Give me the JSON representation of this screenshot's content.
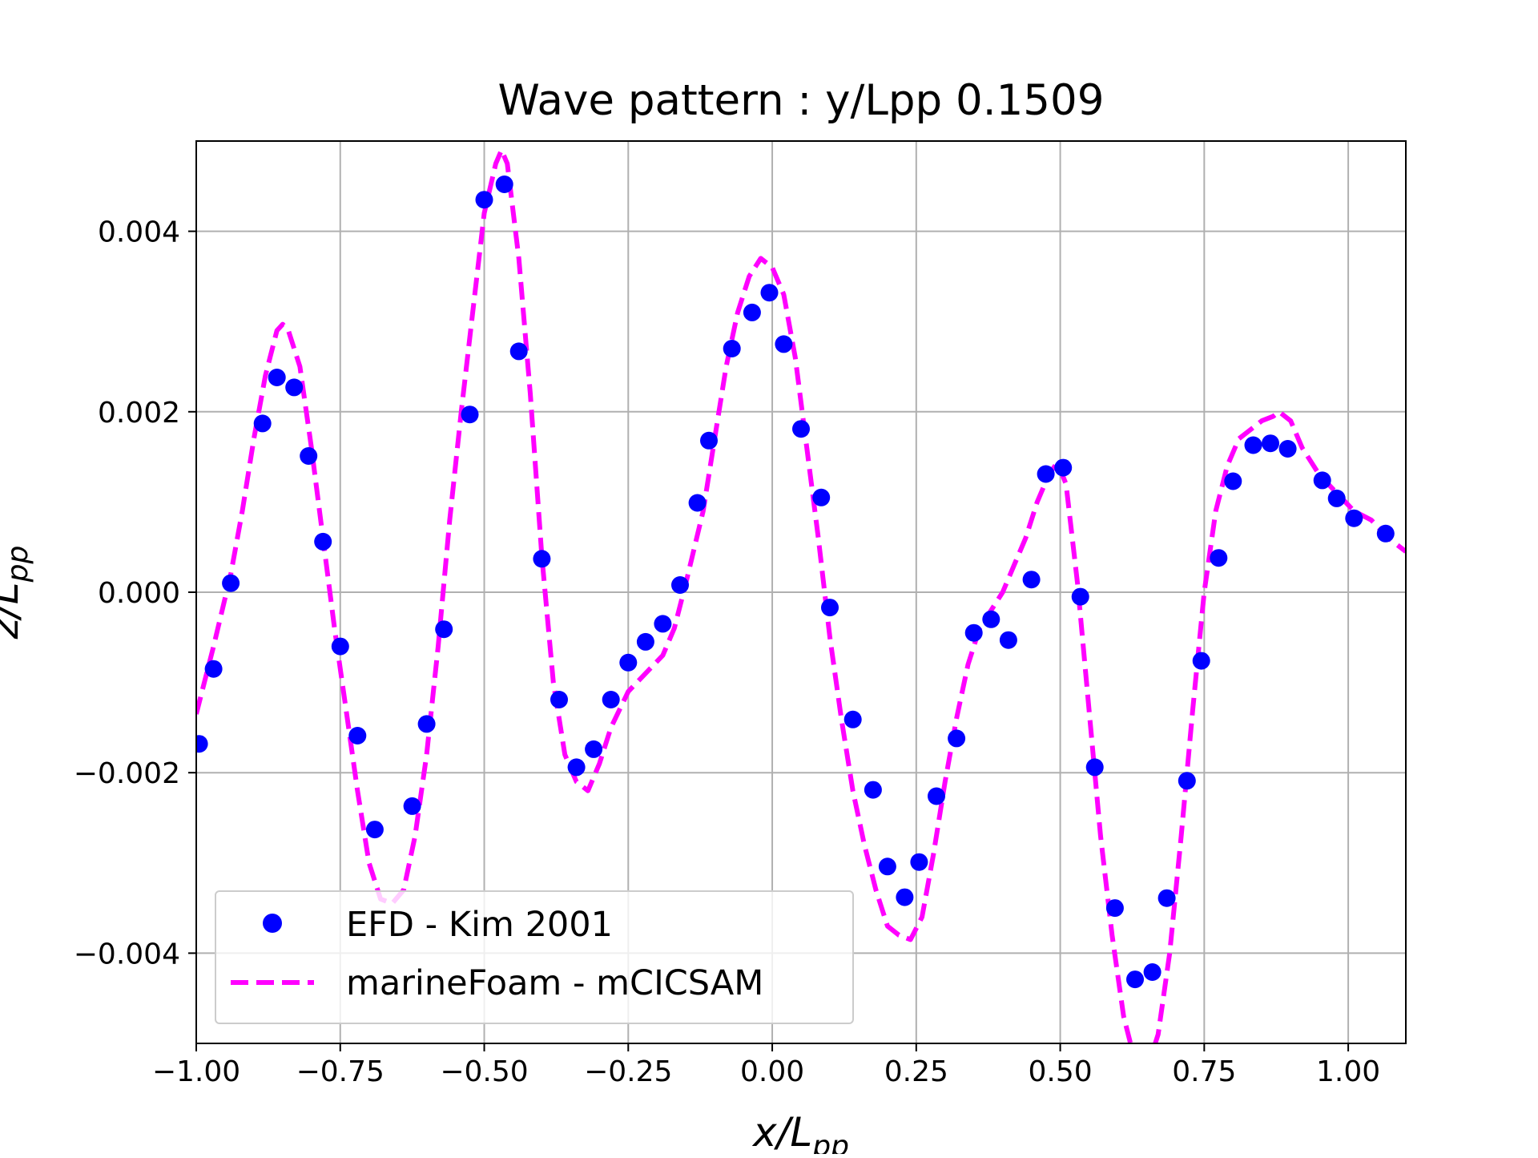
{
  "chart_data": {
    "type": "line",
    "title": "Wave pattern : y/Lpp 0.1509",
    "xlabel": {
      "main": "x/L",
      "sub": "pp"
    },
    "ylabel": {
      "main": "z/L",
      "sub": "pp"
    },
    "xlim": [
      -1.0,
      1.1
    ],
    "ylim": [
      -0.005,
      0.005
    ],
    "xticks": [
      {
        "value": -1.0,
        "label": "−1.00"
      },
      {
        "value": -0.75,
        "label": "−0.75"
      },
      {
        "value": -0.5,
        "label": "−0.50"
      },
      {
        "value": -0.25,
        "label": "−0.25"
      },
      {
        "value": 0.0,
        "label": "0.00"
      },
      {
        "value": 0.25,
        "label": "0.25"
      },
      {
        "value": 0.5,
        "label": "0.50"
      },
      {
        "value": 0.75,
        "label": "0.75"
      },
      {
        "value": 1.0,
        "label": "1.00"
      }
    ],
    "yticks": [
      {
        "value": -0.004,
        "label": "−0.004"
      },
      {
        "value": -0.002,
        "label": "−0.002"
      },
      {
        "value": 0.0,
        "label": "0.000"
      },
      {
        "value": 0.002,
        "label": "0.002"
      },
      {
        "value": 0.004,
        "label": "0.004"
      }
    ],
    "grid": true,
    "legend_position": "lower-left",
    "series": [
      {
        "name": "EFD - Kim 2001",
        "style": "markers",
        "color": "#0000ff",
        "points": [
          [
            -0.995,
            -0.00168
          ],
          [
            -0.97,
            -0.00085
          ],
          [
            -0.94,
            0.0001
          ],
          [
            -0.885,
            0.00187
          ],
          [
            -0.86,
            0.00238
          ],
          [
            -0.83,
            0.00227
          ],
          [
            -0.805,
            0.00151
          ],
          [
            -0.78,
            0.00056
          ],
          [
            -0.75,
            -0.0006
          ],
          [
            -0.72,
            -0.00159
          ],
          [
            -0.69,
            -0.00263
          ],
          [
            -0.625,
            -0.00237
          ],
          [
            -0.6,
            -0.00146
          ],
          [
            -0.57,
            -0.00041
          ],
          [
            -0.525,
            0.00197
          ],
          [
            -0.5,
            0.00435
          ],
          [
            -0.465,
            0.00452
          ],
          [
            -0.44,
            0.00267
          ],
          [
            -0.4,
            0.00037
          ],
          [
            -0.37,
            -0.00119
          ],
          [
            -0.34,
            -0.00194
          ],
          [
            -0.31,
            -0.00174
          ],
          [
            -0.28,
            -0.00119
          ],
          [
            -0.25,
            -0.00078
          ],
          [
            -0.22,
            -0.00055
          ],
          [
            -0.19,
            -0.00035
          ],
          [
            -0.16,
            8e-05
          ],
          [
            -0.13,
            0.00099
          ],
          [
            -0.11,
            0.00168
          ],
          [
            -0.07,
            0.0027
          ],
          [
            -0.035,
            0.0031
          ],
          [
            -0.005,
            0.00332
          ],
          [
            0.02,
            0.00275
          ],
          [
            0.05,
            0.00181
          ],
          [
            0.085,
            0.00105
          ],
          [
            0.1,
            -0.00017
          ],
          [
            0.14,
            -0.00141
          ],
          [
            0.175,
            -0.00219
          ],
          [
            0.2,
            -0.00304
          ],
          [
            0.23,
            -0.00338
          ],
          [
            0.255,
            -0.00299
          ],
          [
            0.285,
            -0.00226
          ],
          [
            0.32,
            -0.00162
          ],
          [
            0.35,
            -0.00045
          ],
          [
            0.38,
            -0.0003
          ],
          [
            0.41,
            -0.00053
          ],
          [
            0.45,
            0.00014
          ],
          [
            0.475,
            0.00131
          ],
          [
            0.505,
            0.00138
          ],
          [
            0.535,
            -5e-05
          ],
          [
            0.56,
            -0.00194
          ],
          [
            0.595,
            -0.0035
          ],
          [
            0.63,
            -0.00429
          ],
          [
            0.66,
            -0.00421
          ],
          [
            0.685,
            -0.00339
          ],
          [
            0.72,
            -0.00209
          ],
          [
            0.745,
            -0.00076
          ],
          [
            0.775,
            0.00038
          ],
          [
            0.8,
            0.00123
          ],
          [
            0.835,
            0.00163
          ],
          [
            0.865,
            0.00165
          ],
          [
            0.895,
            0.00159
          ],
          [
            0.955,
            0.00124
          ],
          [
            0.98,
            0.00104
          ],
          [
            1.01,
            0.00082
          ],
          [
            1.065,
            0.00065
          ]
        ]
      },
      {
        "name": "marineFoam - mCICSAM",
        "style": "dashed",
        "color": "#ff00ff",
        "points": [
          [
            -1.0,
            -0.00135
          ],
          [
            -0.97,
            -0.0006
          ],
          [
            -0.94,
            0.0002
          ],
          [
            -0.92,
            0.0009
          ],
          [
            -0.9,
            0.0017
          ],
          [
            -0.88,
            0.0024
          ],
          [
            -0.86,
            0.0029
          ],
          [
            -0.85,
            0.00297
          ],
          [
            -0.84,
            0.0029
          ],
          [
            -0.82,
            0.0025
          ],
          [
            -0.8,
            0.0016
          ],
          [
            -0.78,
            0.0006
          ],
          [
            -0.76,
            -0.0004
          ],
          [
            -0.74,
            -0.0013
          ],
          [
            -0.72,
            -0.0022
          ],
          [
            -0.7,
            -0.003
          ],
          [
            -0.68,
            -0.0034
          ],
          [
            -0.66,
            -0.00345
          ],
          [
            -0.64,
            -0.0033
          ],
          [
            -0.62,
            -0.0027
          ],
          [
            -0.6,
            -0.0018
          ],
          [
            -0.58,
            -0.0006
          ],
          [
            -0.56,
            0.0008
          ],
          [
            -0.54,
            0.002
          ],
          [
            -0.52,
            0.0031
          ],
          [
            -0.5,
            0.0042
          ],
          [
            -0.48,
            0.00475
          ],
          [
            -0.47,
            0.0049
          ],
          [
            -0.46,
            0.00475
          ],
          [
            -0.44,
            0.0037
          ],
          [
            -0.42,
            0.0022
          ],
          [
            -0.4,
            0.0004
          ],
          [
            -0.38,
            -0.001
          ],
          [
            -0.36,
            -0.0018
          ],
          [
            -0.34,
            -0.0021
          ],
          [
            -0.32,
            -0.0022
          ],
          [
            -0.3,
            -0.0019
          ],
          [
            -0.28,
            -0.0015
          ],
          [
            -0.25,
            -0.0011
          ],
          [
            -0.22,
            -0.0009
          ],
          [
            -0.19,
            -0.0007
          ],
          [
            -0.17,
            -0.0004
          ],
          [
            -0.15,
            0.0001
          ],
          [
            -0.12,
            0.0009
          ],
          [
            -0.1,
            0.0017
          ],
          [
            -0.08,
            0.0025
          ],
          [
            -0.06,
            0.0031
          ],
          [
            -0.04,
            0.0035
          ],
          [
            -0.02,
            0.0037
          ],
          [
            0.0,
            0.0036
          ],
          [
            0.02,
            0.0033
          ],
          [
            0.04,
            0.0026
          ],
          [
            0.06,
            0.0016
          ],
          [
            0.08,
            0.0006
          ],
          [
            0.1,
            -0.0005
          ],
          [
            0.12,
            -0.0014
          ],
          [
            0.14,
            -0.0022
          ],
          [
            0.16,
            -0.0028
          ],
          [
            0.18,
            -0.0033
          ],
          [
            0.2,
            -0.0037
          ],
          [
            0.22,
            -0.0038
          ],
          [
            0.24,
            -0.00385
          ],
          [
            0.26,
            -0.0036
          ],
          [
            0.28,
            -0.0029
          ],
          [
            0.3,
            -0.0021
          ],
          [
            0.32,
            -0.0014
          ],
          [
            0.34,
            -0.0008
          ],
          [
            0.36,
            -0.0004
          ],
          [
            0.38,
            -0.0002
          ],
          [
            0.4,
            0.0
          ],
          [
            0.42,
            0.0003
          ],
          [
            0.44,
            0.0006
          ],
          [
            0.46,
            0.001
          ],
          [
            0.48,
            0.0013
          ],
          [
            0.495,
            0.00144
          ],
          [
            0.51,
            0.0012
          ],
          [
            0.53,
            0.0001
          ],
          [
            0.55,
            -0.0013
          ],
          [
            0.57,
            -0.0027
          ],
          [
            0.59,
            -0.0038
          ],
          [
            0.61,
            -0.0047
          ],
          [
            0.63,
            -0.0052
          ],
          [
            0.65,
            -0.0053
          ],
          [
            0.67,
            -0.0049
          ],
          [
            0.69,
            -0.004
          ],
          [
            0.71,
            -0.0027
          ],
          [
            0.73,
            -0.0013
          ],
          [
            0.75,
            0.0
          ],
          [
            0.77,
            0.0009
          ],
          [
            0.79,
            0.0014
          ],
          [
            0.81,
            0.0017
          ],
          [
            0.83,
            0.0018
          ],
          [
            0.85,
            0.0019
          ],
          [
            0.87,
            0.00195
          ],
          [
            0.88,
            0.002
          ],
          [
            0.9,
            0.0019
          ],
          [
            0.92,
            0.0016
          ],
          [
            0.95,
            0.0013
          ],
          [
            0.98,
            0.0011
          ],
          [
            1.01,
            0.0009
          ],
          [
            1.04,
            0.0008
          ],
          [
            1.07,
            0.0006
          ],
          [
            1.1,
            0.00045
          ]
        ]
      }
    ]
  }
}
